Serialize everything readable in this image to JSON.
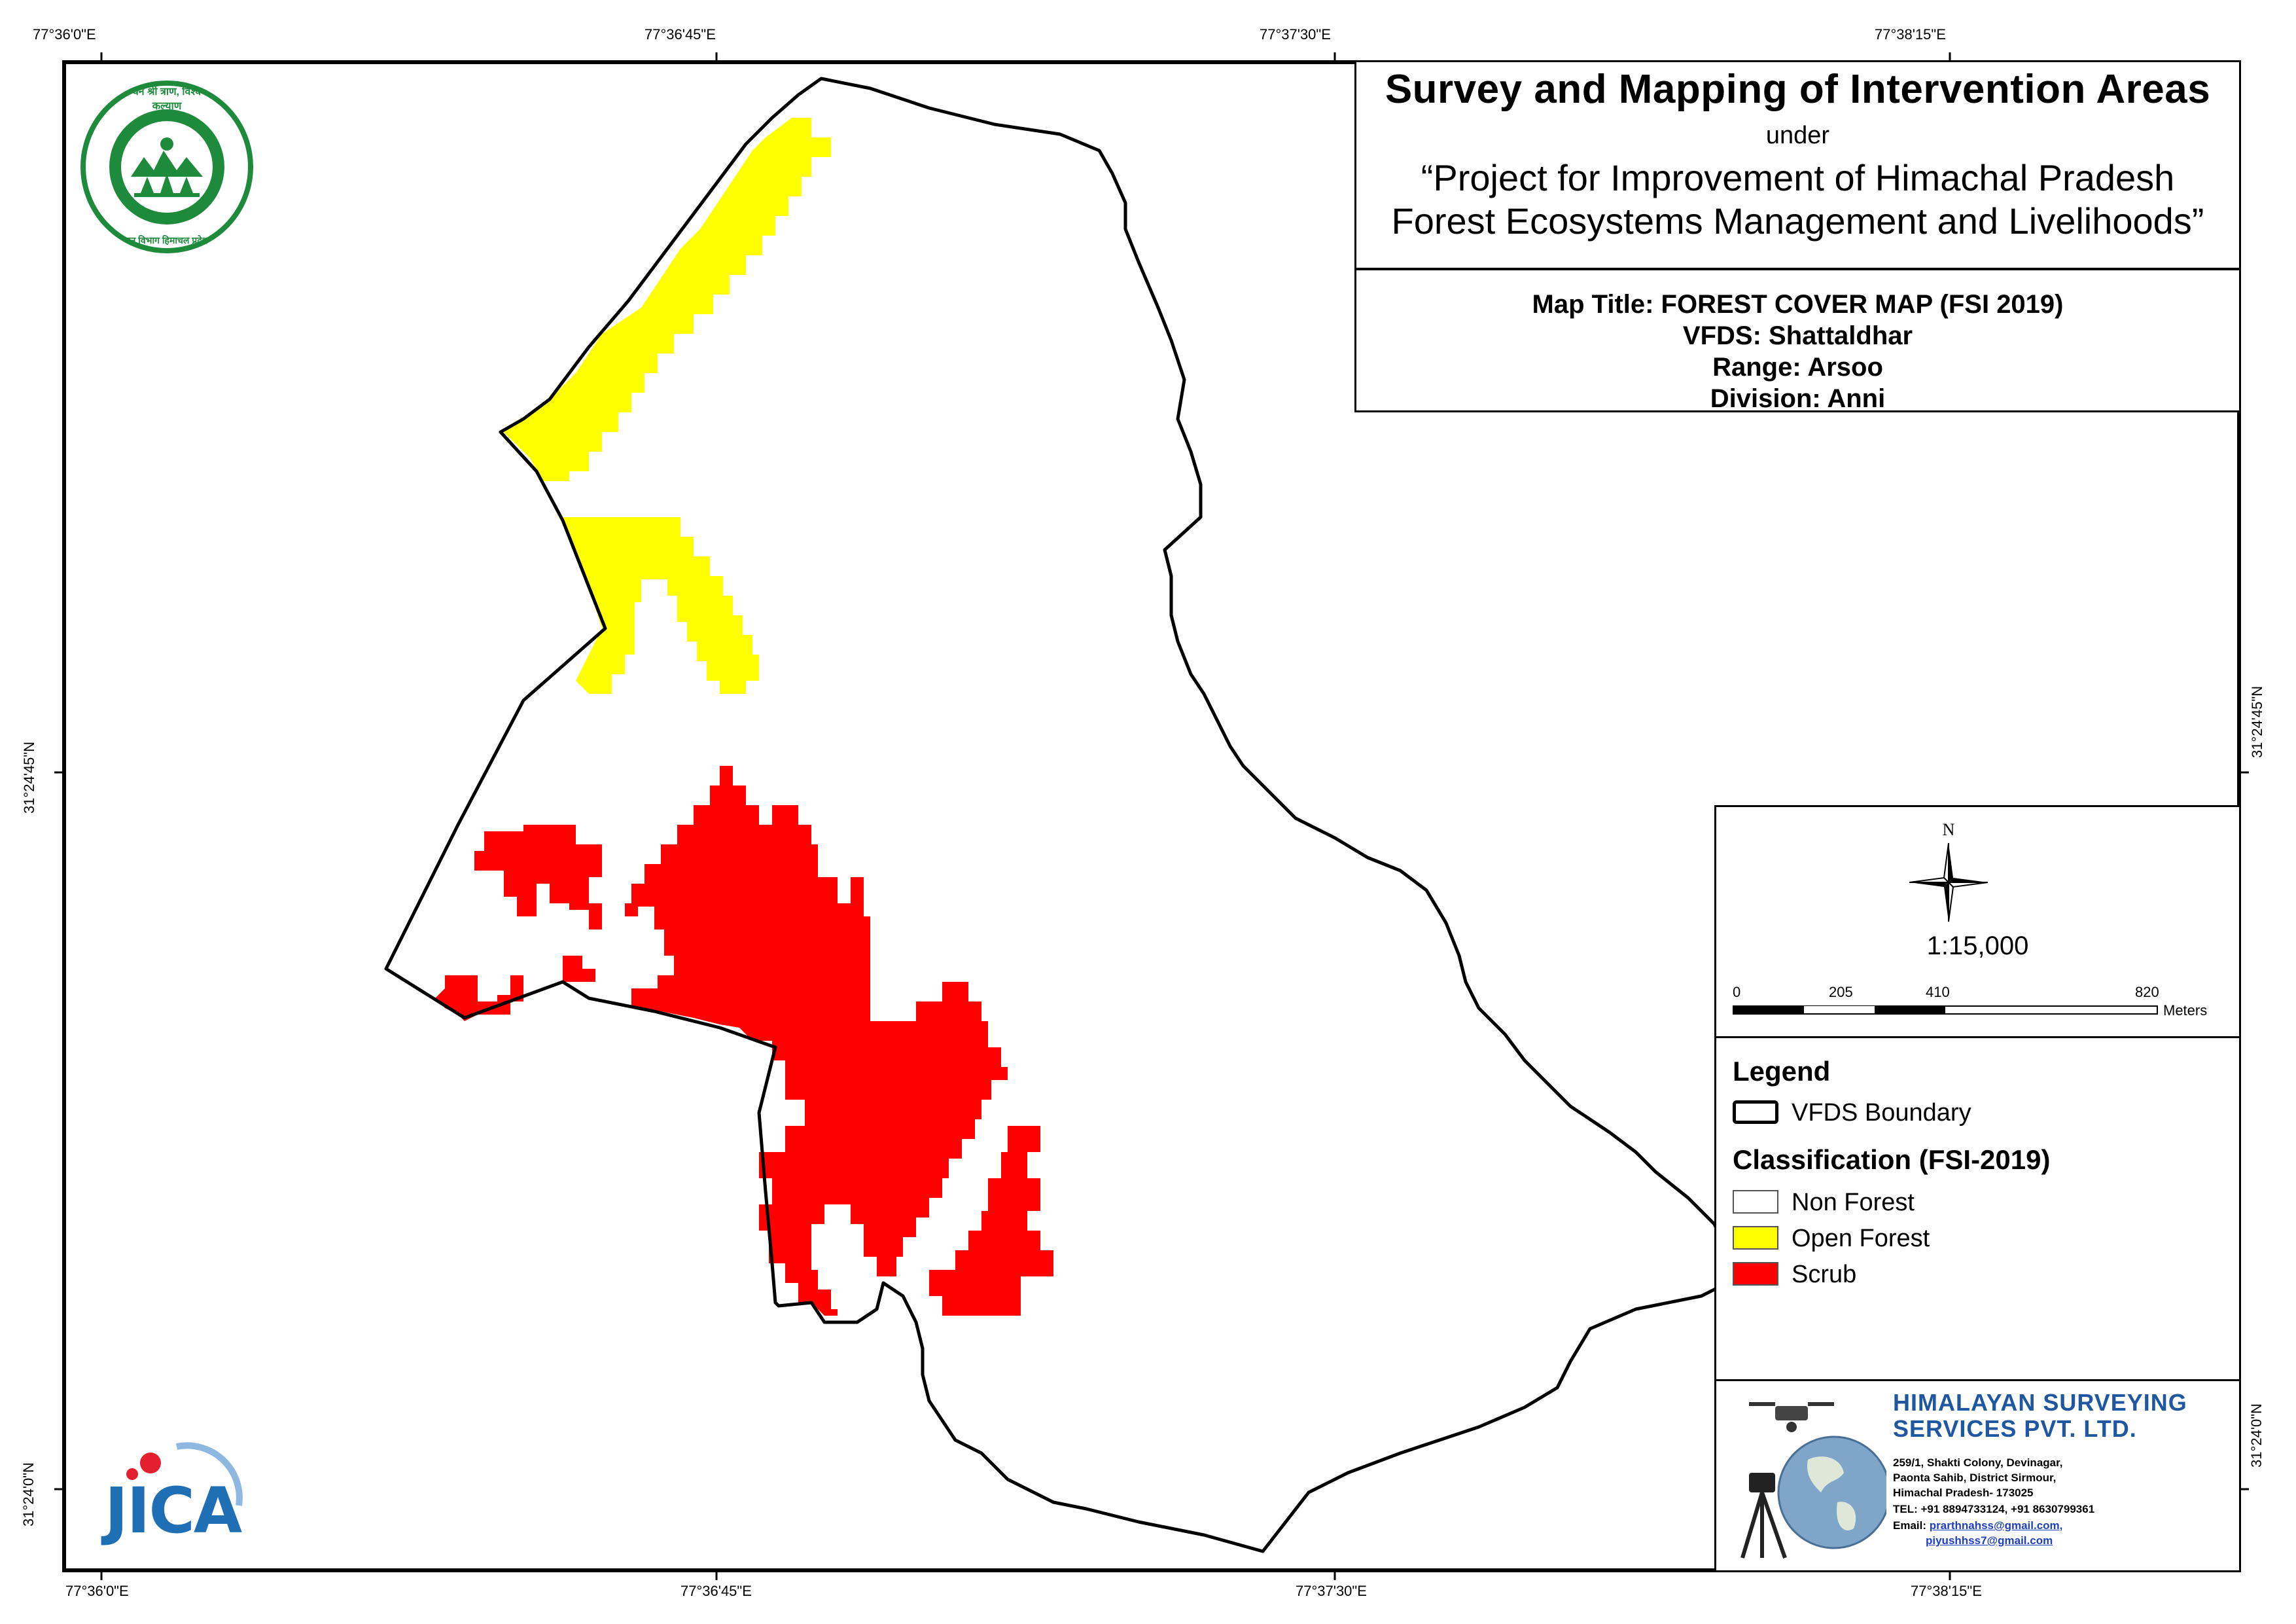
{
  "graticule": {
    "top": [
      "77°36'0\"E",
      "77°36'45\"E",
      "77°37'30\"E",
      "77°38'15\"E"
    ],
    "bottom": [
      "77°36'0\"E",
      "77°36'45\"E",
      "77°37'30\"E",
      "77°38'15\"E"
    ],
    "left": [
      "31°24'45\"N",
      "31°24'0\"N"
    ],
    "right": [
      "31°24'45\"N",
      "31°24'0\"N"
    ]
  },
  "title": {
    "main": "Survey and Mapping of Intervention Areas",
    "under": "under",
    "project_line1": "“Project for Improvement of Himachal Pradesh",
    "project_line2": "Forest Ecosystems Management and Livelihoods”"
  },
  "map_info": {
    "map_title": "Map Title: FOREST COVER MAP (FSI 2019)",
    "vfds": "VFDS: Shattaldhar",
    "range": "Range: Arsoo",
    "division": "Division: Anni"
  },
  "north_arrow": {
    "label": "N"
  },
  "scale": {
    "ratio": "1:15,000",
    "ticks": [
      "0",
      "205",
      "410",
      "820"
    ],
    "unit": "Meters"
  },
  "legend": {
    "heading": "Legend",
    "boundary_label": "VFDS Boundary",
    "classification_heading": "Classification (FSI-2019)",
    "items": [
      {
        "label": "Non Forest",
        "color": "#ffffff"
      },
      {
        "label": "Open Forest",
        "color": "#ffff00"
      },
      {
        "label": "Scrub",
        "color": "#ff0000"
      }
    ]
  },
  "company": {
    "name_line1": "HIMALAYAN SURVEYING",
    "name_line2": "SERVICES PVT. LTD.",
    "address1": "259/1, Shakti Colony, Devinagar,",
    "address2": "Paonta Sahib, District Sirmour,",
    "address3": "Himachal Pradesh- 173025",
    "tel": "TEL: +91 8894733124, +91 8630799361",
    "email_label": "Email:",
    "email1": "prarthnahss@gmail.com,",
    "email2": "piyushhss7@gmail.com"
  },
  "logos": {
    "jica": "JICA",
    "hp_forest_top": "वन श्री त्राण, विश्व कल्याण",
    "hp_forest_bottom": "वन विभाग हिमाचल प्रदेश"
  },
  "colors": {
    "open_forest": "#ffff00",
    "scrub": "#ff0000",
    "boundary": "#000000",
    "forest_logo_green": "#1e8a3c",
    "jica_blue": "#1f6fb5",
    "jica_red": "#e5202e",
    "company_blue": "#1f57a0"
  }
}
